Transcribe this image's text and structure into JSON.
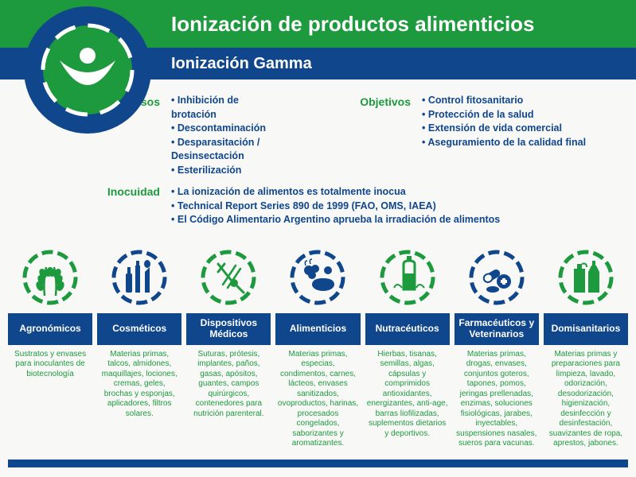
{
  "colors": {
    "green": "#1d9a3d",
    "blue": "#10468c",
    "bg": "#f8f8f7",
    "white": "#ffffff"
  },
  "header": {
    "title": "Ionización de productos alimenticios",
    "subtitle": "Ionización  Gamma"
  },
  "info": {
    "usos_label": "Usos",
    "usos": [
      "Inhibición de brotación",
      "Descontaminación",
      "Desparasitación / Desinsectación",
      "Esterilización"
    ],
    "objetivos_label": "Objetivos",
    "objetivos": [
      "Control fitosanitario",
      "Protección de la salud",
      "Extensión de vida comercial",
      "Aseguramiento de la calidad final"
    ],
    "inocuidad_label": "Inocuidad",
    "inocuidad": [
      "La ionización de alimentos es totalmente inocua",
      "Technical Report Series 890 de 1999 (FAO, OMS, IAEA)",
      "El Código Alimentario Argentino aprueba la irradiación de alimentos"
    ]
  },
  "categories": [
    {
      "title": "Agronómicos",
      "stroke": "#1d9a3d",
      "icon": "wheat",
      "desc": "Sustratos y envases para inoculantes de biotecnología"
    },
    {
      "title": "Cosméticos",
      "stroke": "#10468c",
      "icon": "cosmetics",
      "desc": "Materias primas, talcos, almidones, maquillajes, lociones, cremas, geles, brochas y esponjas, aplicadores, filtros solares."
    },
    {
      "title": "Dispositivos Médicos",
      "stroke": "#1d9a3d",
      "icon": "medical",
      "desc": "Suturas, prótesis, implantes, paños, gasas, apósitos, guantes, campos quirúrgicos, contenedores para nutrición parenteral."
    },
    {
      "title": "Alimenticios",
      "stroke": "#10468c",
      "icon": "food",
      "desc": "Materias primas, especias, condimentos, carnes, lácteos, envases sanitizados, ovoproductos, harinas, procesados congelados, saborizantes y aromatizantes."
    },
    {
      "title": "Nutracéuticos",
      "stroke": "#1d9a3d",
      "icon": "nutra",
      "desc": "Hierbas, tisanas, semillas, algas, cápsulas y comprimidos antioxidantes, energizantes, anti-age, barras liofilizadas, suplementos dietarios y deportivos."
    },
    {
      "title": "Farmacéuticos y Veterinarios",
      "stroke": "#10468c",
      "icon": "pharma",
      "desc": "Materias primas, drogas, envases, conjuntos goteros, tapones, pomos, jeringas prellenadas, enzimas, soluciones fisiológicas, jarabes, inyectables, suspensiones nasales, sueros para vacunas."
    },
    {
      "title": "Domisanitarios",
      "stroke": "#1d9a3d",
      "icon": "cleaning",
      "desc": "Materias primas y preparaciones para limpieza, lavado, odorización, desodorización, higienización, desinfección y desinfestación, suavizantes de ropa, aprestos, jabones."
    }
  ]
}
